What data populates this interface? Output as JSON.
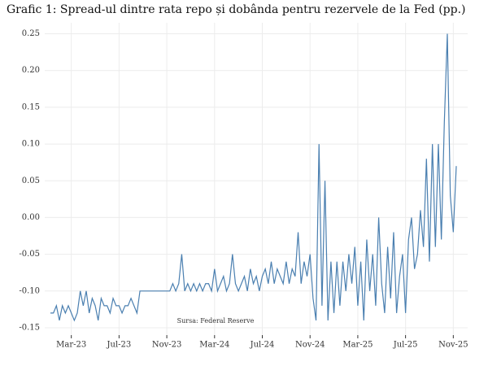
{
  "chart_data": {
    "type": "line",
    "title": "Grafic 1: Spread-ul dintre rata repo și dobânda pentru rezervele de la Fed (pp.)",
    "annotation": "Sursa: Federal Reserve",
    "categories": [
      null,
      null,
      null,
      null,
      null,
      null,
      null,
      "Mar-23",
      null,
      null,
      null,
      null,
      null,
      null,
      null,
      null,
      null,
      null,
      null,
      null,
      null,
      null,
      null,
      "Jul-23",
      null,
      null,
      null,
      null,
      null,
      null,
      null,
      null,
      null,
      null,
      null,
      null,
      null,
      null,
      null,
      "Nov-23",
      null,
      null,
      null,
      null,
      null,
      null,
      null,
      null,
      null,
      null,
      null,
      null,
      null,
      null,
      null,
      "Mar-24",
      null,
      null,
      null,
      null,
      null,
      null,
      null,
      null,
      null,
      null,
      null,
      null,
      null,
      null,
      null,
      "Jul-24",
      null,
      null,
      null,
      null,
      null,
      null,
      null,
      null,
      null,
      null,
      null,
      null,
      null,
      null,
      null,
      "Nov-24",
      null,
      null,
      null,
      null,
      null,
      null,
      null,
      null,
      null,
      null,
      null,
      null,
      null,
      null,
      null,
      "Mar-25",
      null,
      null,
      null,
      null,
      null,
      null,
      null,
      null,
      null,
      null,
      null,
      null,
      null,
      null,
      null,
      "Jul-25",
      null,
      null,
      null,
      null,
      null,
      null,
      null,
      null,
      null,
      null,
      null,
      null,
      null,
      null,
      null,
      "Nov-25",
      null
    ],
    "series": [
      {
        "color": "#4a7fb0",
        "values": [
          -0.13,
          -0.13,
          -0.12,
          -0.14,
          -0.12,
          -0.13,
          -0.12,
          -0.13,
          -0.14,
          -0.13,
          -0.1,
          -0.12,
          -0.1,
          -0.13,
          -0.11,
          -0.12,
          -0.14,
          -0.11,
          -0.12,
          -0.12,
          -0.13,
          -0.11,
          -0.12,
          -0.12,
          -0.13,
          -0.12,
          -0.12,
          -0.11,
          -0.12,
          -0.13,
          -0.1,
          -0.1,
          -0.1,
          -0.1,
          -0.1,
          -0.1,
          -0.1,
          -0.1,
          -0.1,
          -0.1,
          -0.1,
          -0.09,
          -0.1,
          -0.09,
          -0.05,
          -0.1,
          -0.09,
          -0.1,
          -0.09,
          -0.1,
          -0.09,
          -0.1,
          -0.09,
          -0.09,
          -0.1,
          -0.07,
          -0.1,
          -0.09,
          -0.08,
          -0.1,
          -0.09,
          -0.05,
          -0.09,
          -0.1,
          -0.09,
          -0.08,
          -0.1,
          -0.07,
          -0.09,
          -0.08,
          -0.1,
          -0.08,
          -0.07,
          -0.09,
          -0.06,
          -0.09,
          -0.07,
          -0.08,
          -0.09,
          -0.06,
          -0.09,
          -0.07,
          -0.08,
          -0.02,
          -0.09,
          -0.06,
          -0.08,
          -0.05,
          -0.11,
          -0.14,
          0.1,
          -0.12,
          0.05,
          -0.14,
          -0.06,
          -0.13,
          -0.06,
          -0.12,
          -0.06,
          -0.1,
          -0.05,
          -0.09,
          -0.04,
          -0.12,
          -0.06,
          -0.14,
          -0.03,
          -0.1,
          -0.05,
          -0.12,
          0.0,
          -0.09,
          -0.13,
          -0.04,
          -0.11,
          -0.02,
          -0.13,
          -0.08,
          -0.05,
          -0.13,
          -0.03,
          0.0,
          -0.07,
          -0.05,
          0.01,
          -0.04,
          0.08,
          -0.06,
          0.1,
          -0.04,
          0.1,
          -0.03,
          0.13,
          0.25,
          0.03,
          -0.02,
          0.07
        ]
      }
    ],
    "ylim": [
      -0.16,
      0.265
    ],
    "yticks": [
      -0.15,
      {
        "value": -0.1,
        "label": "-0.10"
      },
      -0.05,
      {
        "value": 0,
        "label": "0.00"
      },
      0.05,
      {
        "value": 0.1,
        "label": "0.10"
      },
      0.15,
      {
        "value": 0.2,
        "label": "0.20"
      },
      0.25
    ],
    "grid": true
  }
}
